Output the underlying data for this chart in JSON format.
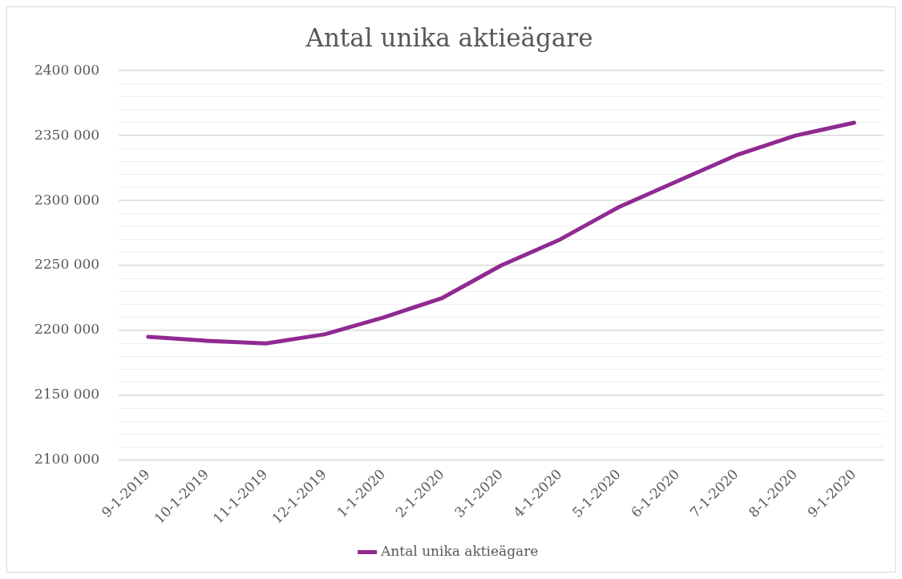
{
  "chart_data": {
    "type": "line",
    "title": "Antal unika aktieägare",
    "categories": [
      "9-1-2019",
      "10-1-2019",
      "11-1-2019",
      "12-1-2019",
      "1-1-2020",
      "2-1-2020",
      "3-1-2020",
      "4-1-2020",
      "5-1-2020",
      "6-1-2020",
      "7-1-2020",
      "8-1-2020",
      "9-1-2020"
    ],
    "series": [
      {
        "name": "Antal unika aktieägare",
        "color": "#902a91",
        "values": [
          2195000,
          2192000,
          2190000,
          2197000,
          2210000,
          2225000,
          2250000,
          2270000,
          2295000,
          2315000,
          2335000,
          2350000,
          2360000
        ]
      }
    ],
    "ylim": [
      2100000,
      2400000
    ],
    "yticks": [
      {
        "value": 2100000,
        "label": "2100 000"
      },
      {
        "value": 2110000,
        "label": null
      },
      {
        "value": 2120000,
        "label": null
      },
      {
        "value": 2130000,
        "label": null
      },
      {
        "value": 2140000,
        "label": null
      },
      {
        "value": 2150000,
        "label": "2150 000"
      },
      {
        "value": 2160000,
        "label": null
      },
      {
        "value": 2170000,
        "label": null
      },
      {
        "value": 2180000,
        "label": null
      },
      {
        "value": 2190000,
        "label": null
      },
      {
        "value": 2200000,
        "label": "2200 000"
      },
      {
        "value": 2210000,
        "label": null
      },
      {
        "value": 2220000,
        "label": null
      },
      {
        "value": 2230000,
        "label": null
      },
      {
        "value": 2240000,
        "label": null
      },
      {
        "value": 2250000,
        "label": "2250 000"
      },
      {
        "value": 2260000,
        "label": null
      },
      {
        "value": 2270000,
        "label": null
      },
      {
        "value": 2280000,
        "label": null
      },
      {
        "value": 2290000,
        "label": null
      },
      {
        "value": 2300000,
        "label": "2300 000"
      },
      {
        "value": 2310000,
        "label": null
      },
      {
        "value": 2320000,
        "label": null
      },
      {
        "value": 2330000,
        "label": null
      },
      {
        "value": 2340000,
        "label": null
      },
      {
        "value": 2350000,
        "label": "2350 000"
      },
      {
        "value": 2360000,
        "label": null
      },
      {
        "value": 2370000,
        "label": null
      },
      {
        "value": 2380000,
        "label": null
      },
      {
        "value": 2390000,
        "label": null
      },
      {
        "value": 2400000,
        "label": "2400 000"
      }
    ],
    "grid": "y",
    "legend": "bottom",
    "marker": "none",
    "line_style": "solid"
  }
}
